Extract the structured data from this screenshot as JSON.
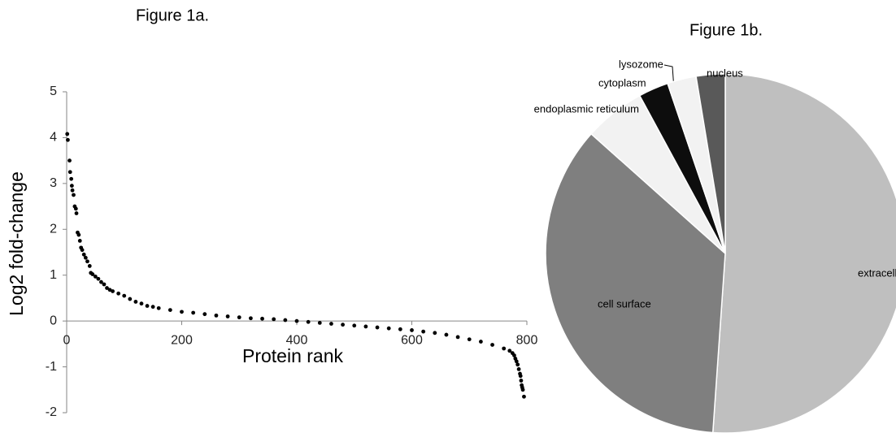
{
  "chart_data": [
    {
      "type": "scatter",
      "title": "Figure 1a.",
      "x_label": "Protein rank",
      "y_label": "Log2 fold-change",
      "color": "#000000",
      "x": [
        1,
        2,
        5,
        6,
        8,
        9,
        10,
        12,
        14,
        16,
        17,
        19,
        21,
        23,
        25,
        27,
        30,
        33,
        36,
        40,
        42,
        45,
        50,
        55,
        60,
        65,
        70,
        75,
        80,
        90,
        100,
        110,
        120,
        130,
        140,
        150,
        160,
        180,
        200,
        220,
        240,
        260,
        280,
        300,
        320,
        340,
        360,
        380,
        400,
        420,
        440,
        460,
        480,
        500,
        520,
        540,
        560,
        580,
        600,
        620,
        640,
        660,
        680,
        700,
        720,
        740,
        760,
        770,
        775,
        778,
        780,
        782,
        784,
        786,
        788,
        789,
        790,
        791,
        792,
        793,
        795
      ],
      "values": [
        4.08,
        3.95,
        3.5,
        3.25,
        3.1,
        2.95,
        2.85,
        2.75,
        2.5,
        2.45,
        2.35,
        1.93,
        1.88,
        1.75,
        1.6,
        1.55,
        1.45,
        1.38,
        1.3,
        1.2,
        1.05,
        1.02,
        0.97,
        0.92,
        0.85,
        0.8,
        0.72,
        0.68,
        0.65,
        0.6,
        0.55,
        0.48,
        0.42,
        0.38,
        0.33,
        0.31,
        0.28,
        0.24,
        0.2,
        0.18,
        0.15,
        0.12,
        0.1,
        0.08,
        0.06,
        0.05,
        0.04,
        0.02,
        0.0,
        -0.02,
        -0.04,
        -0.06,
        -0.08,
        -0.1,
        -0.12,
        -0.14,
        -0.16,
        -0.18,
        -0.2,
        -0.23,
        -0.26,
        -0.3,
        -0.35,
        -0.4,
        -0.45,
        -0.52,
        -0.6,
        -0.65,
        -0.7,
        -0.75,
        -0.82,
        -0.88,
        -0.95,
        -1.05,
        -1.15,
        -1.2,
        -1.3,
        -1.4,
        -1.45,
        -1.5,
        -1.65
      ],
      "xlim": [
        0,
        800
      ],
      "xticks": [
        0,
        200,
        400,
        600,
        800
      ],
      "ylim": [
        -2,
        5
      ],
      "yticks": [
        -2,
        -1,
        0,
        1,
        2,
        3,
        4,
        5
      ]
    },
    {
      "type": "pie",
      "title": "Figure 1b.",
      "categories": [
        "extracellular",
        "cell surface",
        "endoplasmic reticulum",
        "cytoplasm",
        "lysozome",
        "nucleus"
      ],
      "values": [
        51.1,
        35.5,
        5.5,
        2.7,
        2.6,
        2.6
      ],
      "colors": [
        "#bfbfbf",
        "#7f7f7f",
        "#f2f2f2",
        "#0d0d0d",
        "#f2f2f2",
        "#595959"
      ]
    }
  ]
}
